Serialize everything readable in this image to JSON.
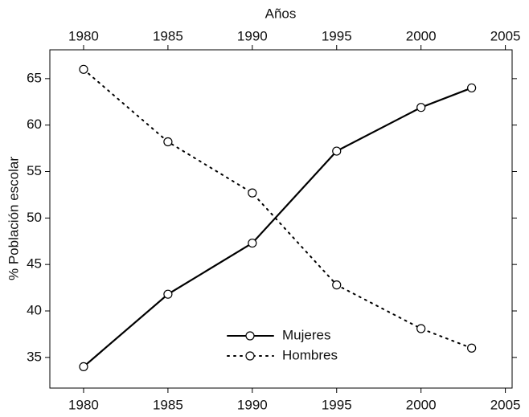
{
  "chart_data": {
    "type": "line",
    "xlabel": "Años",
    "ylabel": "% Población escolar",
    "x": [
      1980,
      1985,
      1990,
      1995,
      2000,
      2003
    ],
    "series": [
      {
        "name": "Mujeres",
        "color": "#000000",
        "linestyle": "solid",
        "values": [
          34,
          41.8,
          47.3,
          57.2,
          61.9,
          64
        ]
      },
      {
        "name": "Hombres",
        "color": "#000000",
        "linestyle": "dotted",
        "values": [
          66,
          58.2,
          52.7,
          42.8,
          38.1,
          36
        ]
      }
    ],
    "xlim": [
      1978,
      2005.4
    ],
    "xticks": [
      1980,
      1985,
      1990,
      1995,
      2000,
      2005
    ],
    "ylim": [
      31.7,
      68.1
    ],
    "yticks": [
      35,
      40,
      45,
      50,
      55,
      60,
      65
    ],
    "grid": false,
    "legend": "lower center"
  }
}
